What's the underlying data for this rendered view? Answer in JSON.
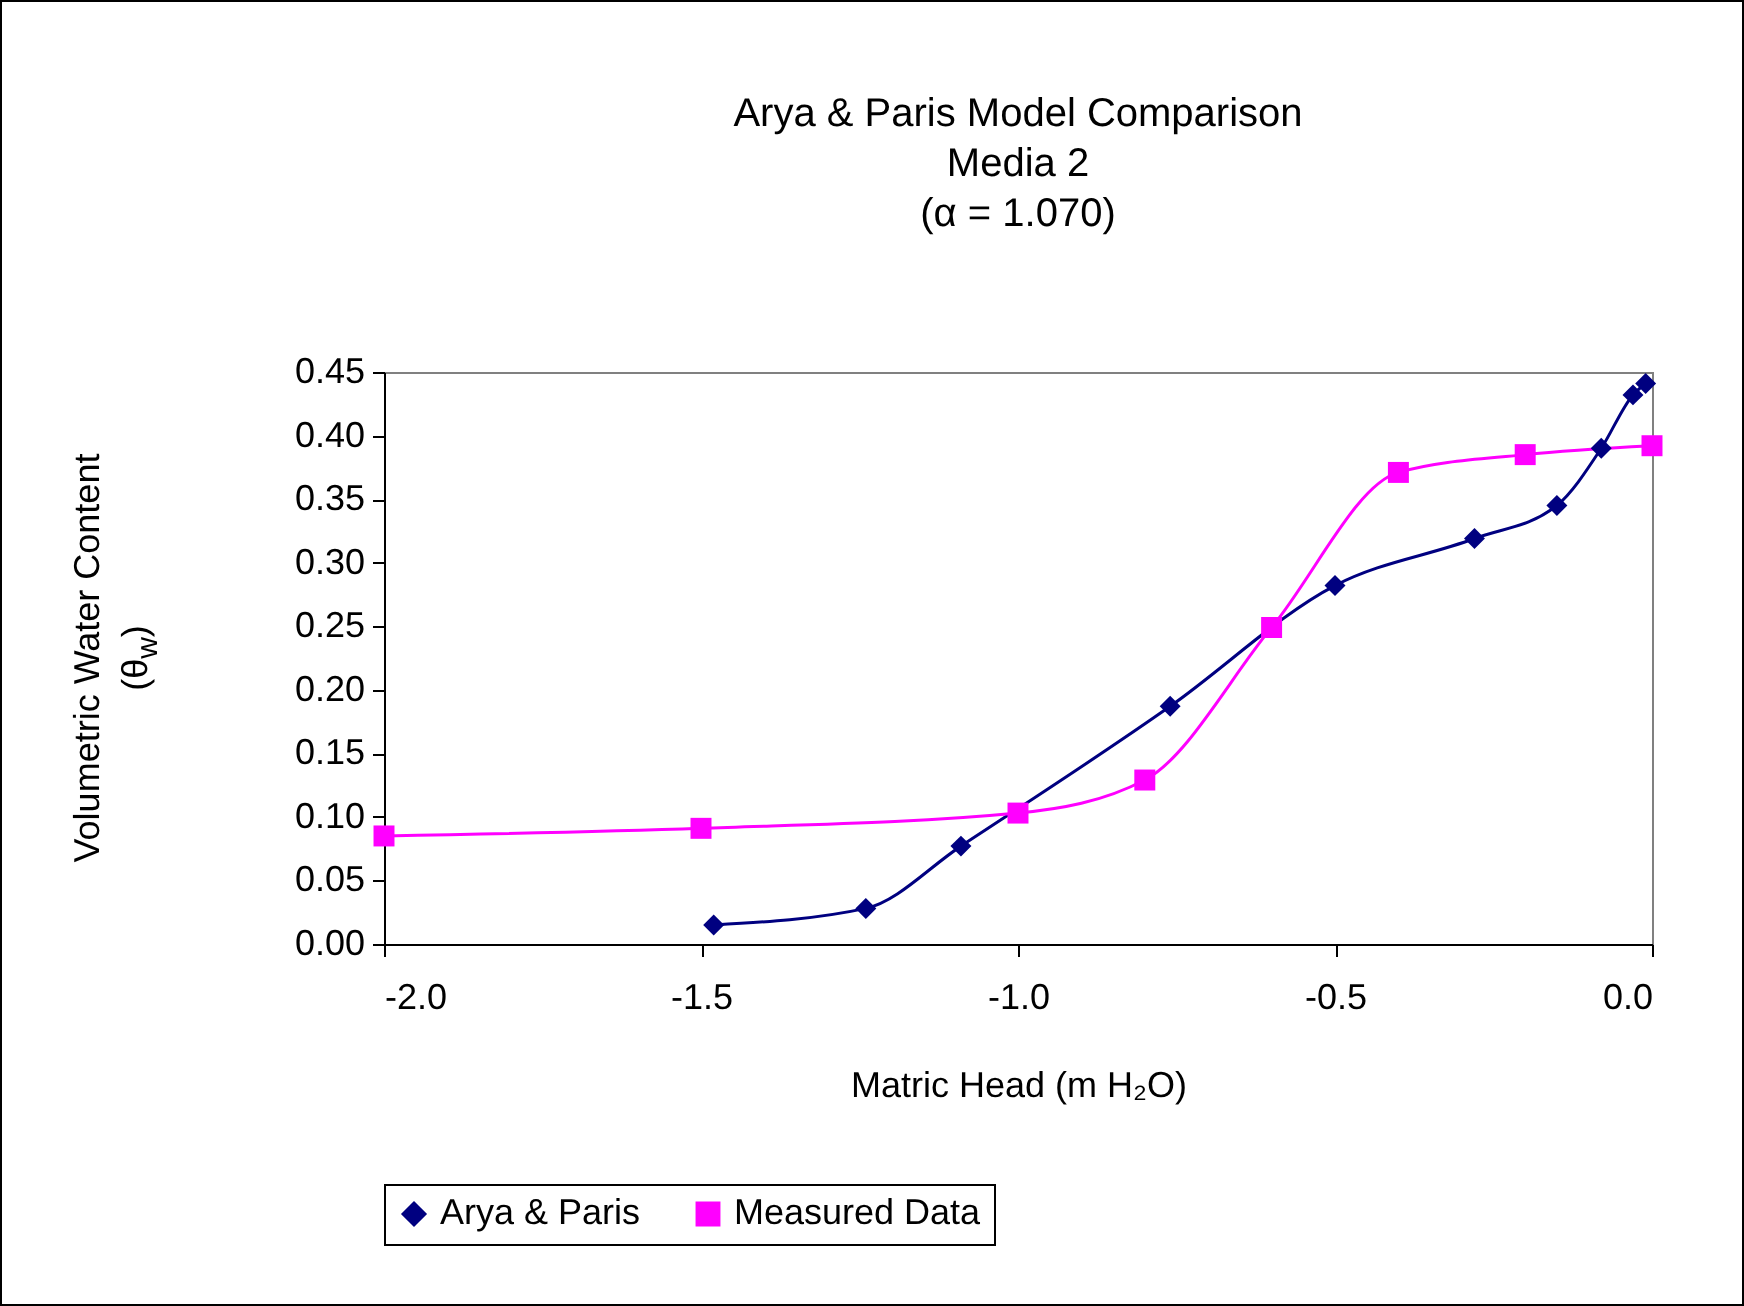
{
  "chart_data": {
    "type": "line",
    "title": "Arya & Paris Model Comparison\nMedia 2\n(α = 1.070)",
    "xlabel": "Matric Head (m H₂O)",
    "ylabel": "Volumetric Water Content\n(θ$_{w}$)",
    "xlim": [
      -2,
      0
    ],
    "xticks": [
      {
        "value": -2,
        "label": "-2.0"
      },
      {
        "value": -1.5,
        "label": "-1.5"
      },
      {
        "value": -1,
        "label": "-1.0"
      },
      {
        "value": -0.5,
        "label": "-0.5"
      },
      {
        "value": 0,
        "label": "0.0"
      }
    ],
    "ylim": [
      0,
      0.45
    ],
    "yticks": [
      {
        "value": 0,
        "label": "0.00"
      },
      {
        "value": 0.05,
        "label": "0.05"
      },
      {
        "value": 0.1,
        "label": "0.10"
      },
      {
        "value": 0.15,
        "label": "0.15"
      },
      {
        "value": 0.2,
        "label": "0.20"
      },
      {
        "value": 0.25,
        "label": "0.25"
      },
      {
        "value": 0.3,
        "label": "0.30"
      },
      {
        "value": 0.35,
        "label": "0.35"
      },
      {
        "value": 0.4,
        "label": "0.40"
      },
      {
        "value": 0.45,
        "label": "0.45"
      }
    ],
    "grid": false,
    "legend": "bottom",
    "series": [
      {
        "name": "Arya & Paris",
        "color": "#000080",
        "marker": "diamond",
        "x": [
          -1.48,
          -1.24,
          -1.09,
          -0.76,
          -0.5,
          -0.28,
          -0.15,
          -0.08,
          -0.03,
          -0.01
        ],
        "values": [
          0.015,
          0.028,
          0.077,
          0.187,
          0.282,
          0.319,
          0.345,
          0.39,
          0.432,
          0.441
        ]
      },
      {
        "name": "Measured Data",
        "color": "#ff00ff",
        "marker": "square",
        "x": [
          -2,
          -1.5,
          -1,
          -0.8,
          -0.6,
          -0.4,
          -0.2,
          0
        ],
        "values": [
          0.085,
          0.091,
          0.103,
          0.129,
          0.249,
          0.371,
          0.385,
          0.392
        ]
      }
    ]
  }
}
